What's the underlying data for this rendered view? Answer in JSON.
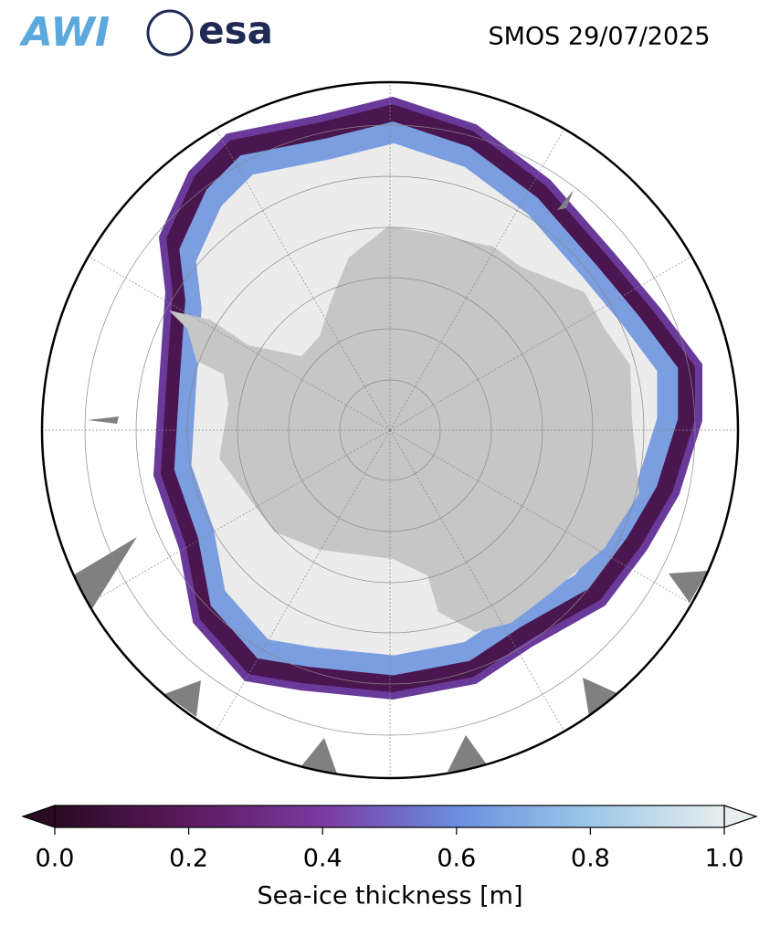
{
  "header": {
    "logos": [
      "AWI",
      "esa"
    ],
    "title": "SMOS 29/07/2025"
  },
  "colorbar": {
    "label": "Sea-ice thickness [m]",
    "lim": [
      0,
      1
    ],
    "ticks": [
      {
        "value": 0,
        "label": "0.0"
      },
      {
        "value": 0.2,
        "label": "0.2"
      },
      {
        "value": 0.4,
        "label": "0.4"
      },
      {
        "value": 0.6,
        "label": "0.6"
      },
      {
        "value": 0.8,
        "label": "0.8"
      },
      {
        "value": 1,
        "label": "1.0"
      }
    ],
    "colors": [
      "#2a0a22",
      "#5b1a5e",
      "#7a3aa0",
      "#6a8ee0",
      "#9cc8e8",
      "#e8eeee"
    ]
  }
}
